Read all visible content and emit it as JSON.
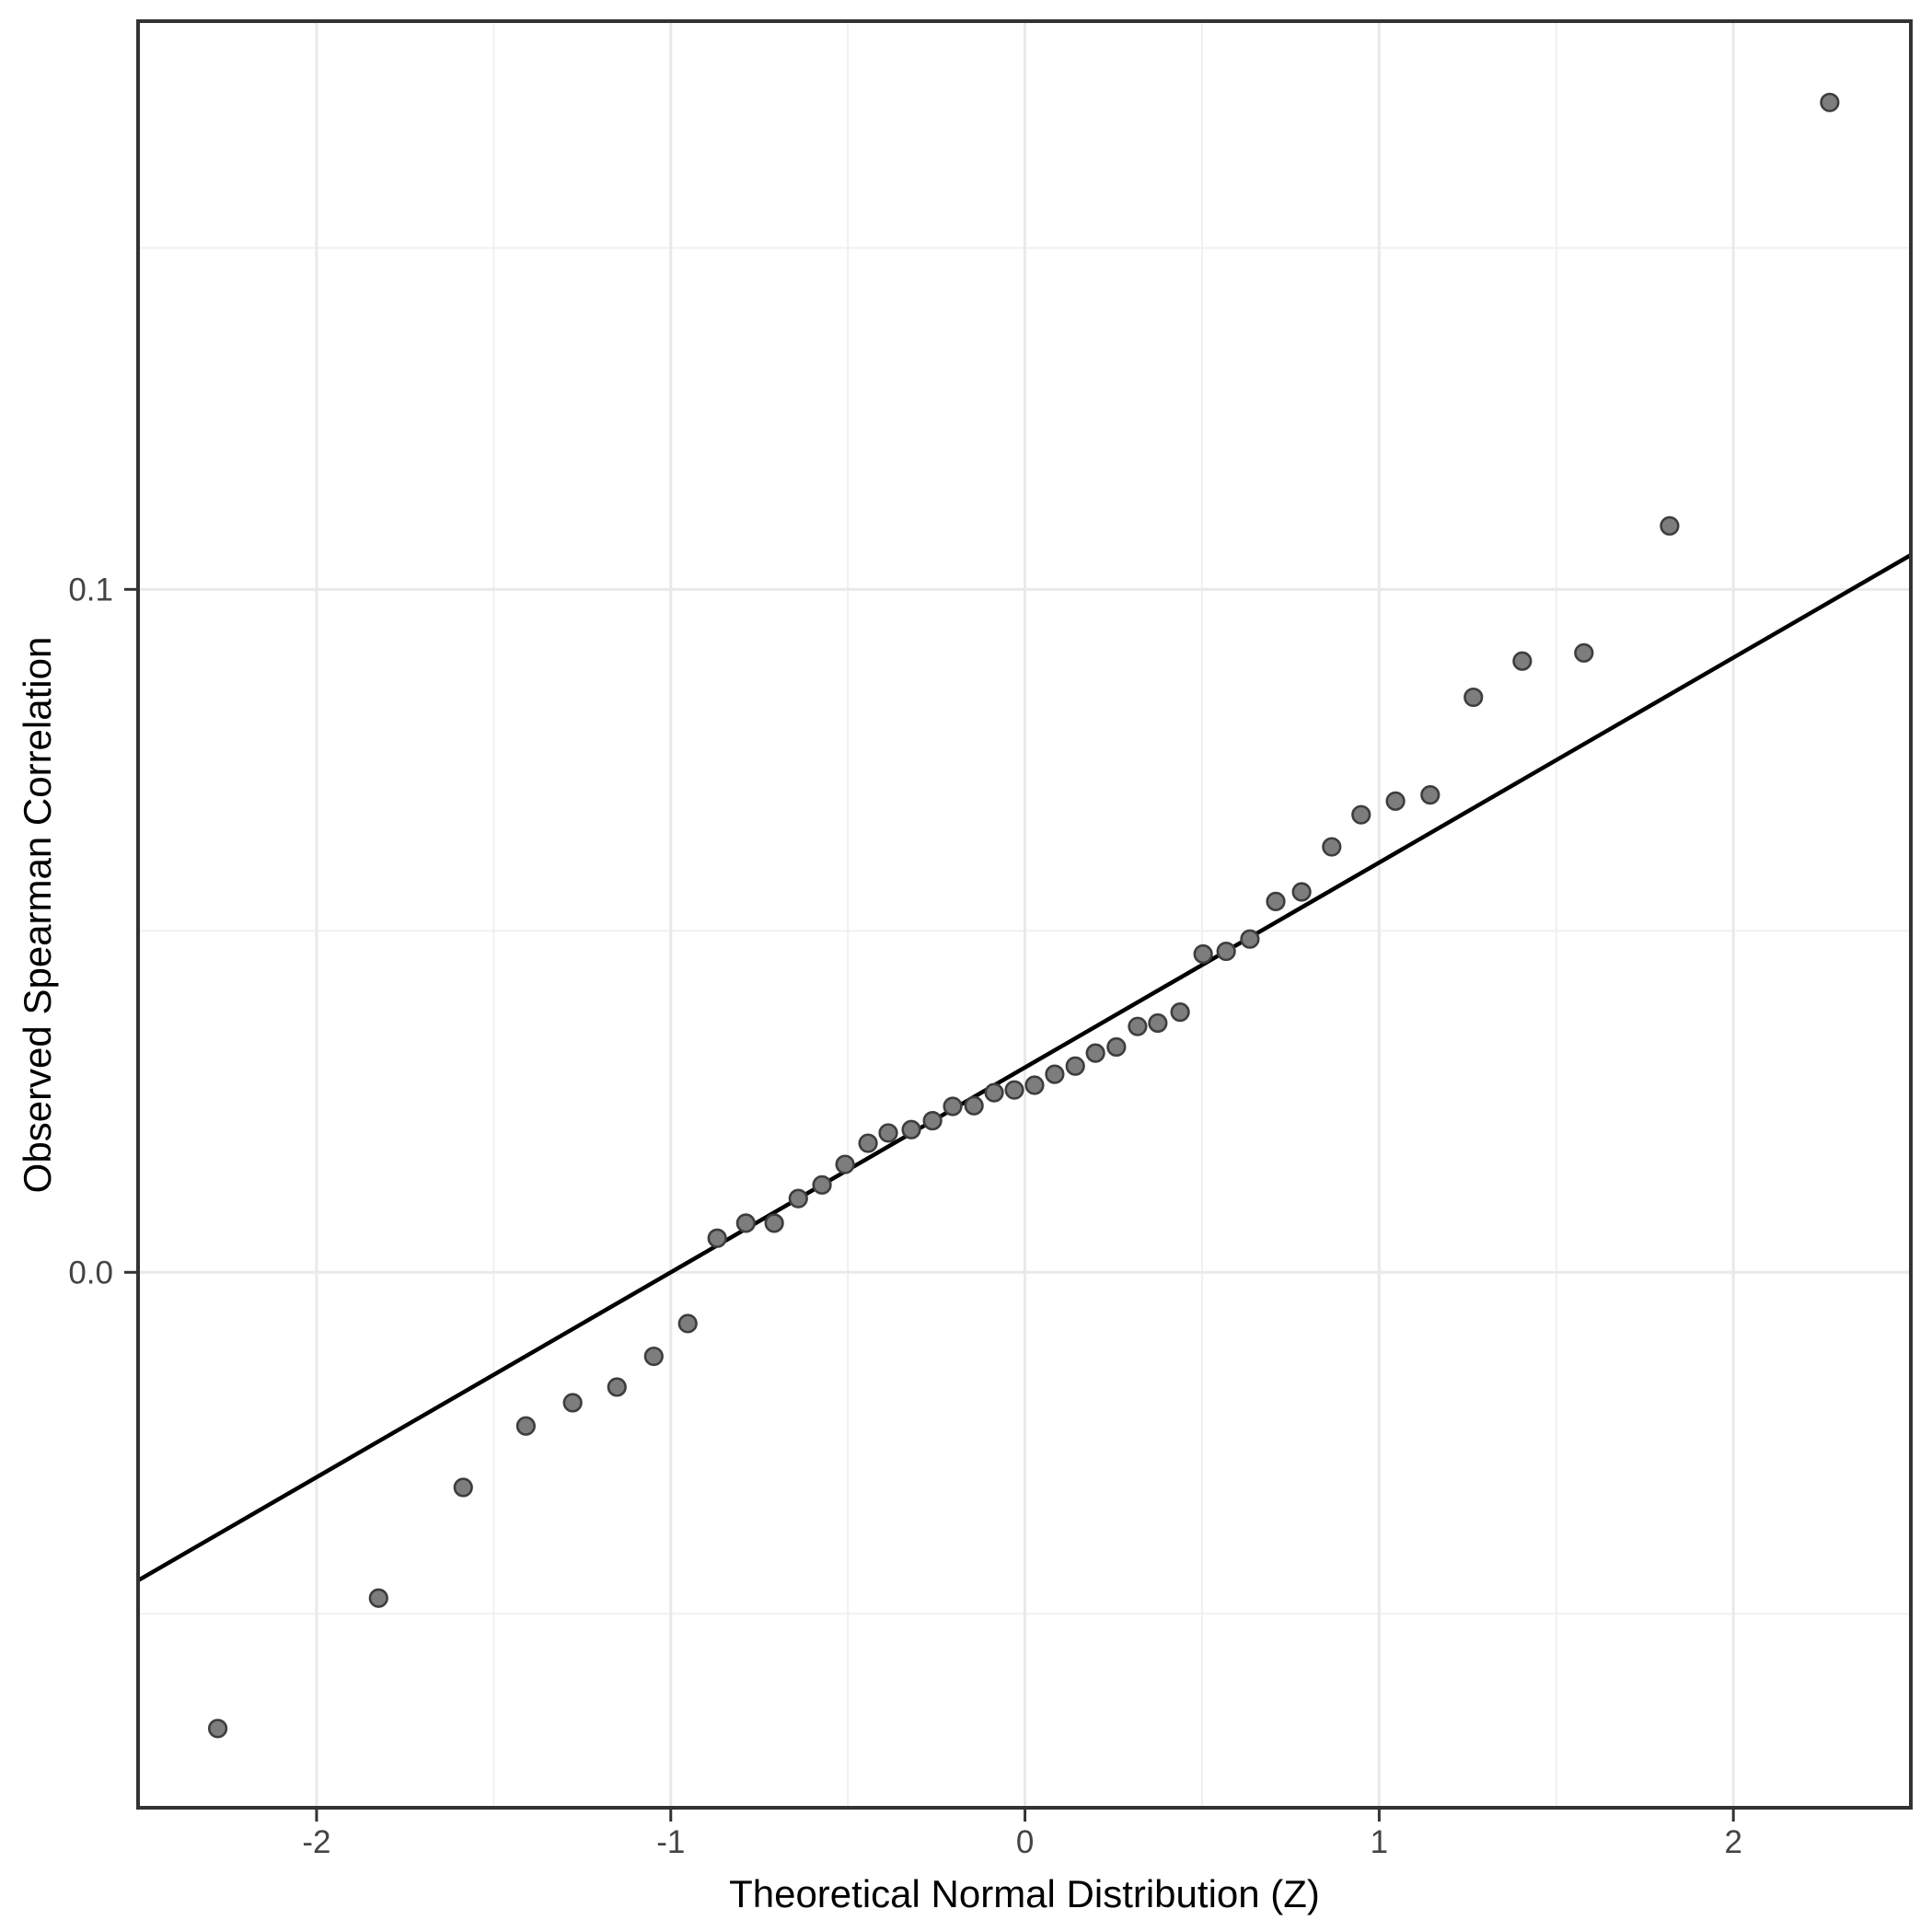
{
  "figure": {
    "background": "#ffffff"
  },
  "colors": {
    "panel_border": "#333333",
    "grid_major": "#e9e9e9",
    "grid_minor": "#f0f0f0",
    "tick_mark": "#333333",
    "tick_label": "#444444",
    "axis_title": "#000000",
    "point_fill": "#7d7d7d",
    "point_stroke": "#3d3d3d",
    "reference_line": "#000000"
  },
  "chart_data": {
    "type": "scatter",
    "title": "",
    "xlabel": "Theoretical Normal Distribution (Z)",
    "ylabel": "Observed Spearman Correlation",
    "xlim": [
      -2.504,
      2.501
    ],
    "ylim": [
      -0.0784,
      0.1832
    ],
    "grid": "major-and-minor",
    "legend": "none",
    "x_tick_values": [
      -2,
      -1,
      0,
      1,
      2
    ],
    "x_tick_labels": [
      "-2",
      "-1",
      "0",
      "1",
      "2"
    ],
    "y_tick_values": [
      0.0,
      0.1
    ],
    "y_tick_labels": [
      "0.0",
      "0.1"
    ],
    "x_minor_gridlines": [
      -1.5,
      -0.5,
      0.5,
      1.5
    ],
    "y_minor_gridlines": [
      -0.05,
      0.05,
      0.15
    ],
    "reference_line": {
      "x": [
        -2.504,
        2.501
      ],
      "y": [
        -0.04512,
        0.10503
      ]
    },
    "points": [
      [
        -2.279,
        -0.0668
      ],
      [
        -1.825,
        -0.0477
      ],
      [
        -1.586,
        -0.0315
      ],
      [
        -1.409,
        -0.0225
      ],
      [
        -1.277,
        -0.0191
      ],
      [
        -1.152,
        -0.0168
      ],
      [
        -1.048,
        -0.0123
      ],
      [
        -0.952,
        -0.0075
      ],
      [
        -0.869,
        0.005
      ],
      [
        -0.788,
        0.0072
      ],
      [
        -0.708,
        0.0072
      ],
      [
        -0.64,
        0.0108
      ],
      [
        -0.573,
        0.0128
      ],
      [
        -0.508,
        0.0158
      ],
      [
        -0.443,
        0.0189
      ],
      [
        -0.386,
        0.0204
      ],
      [
        -0.321,
        0.0209
      ],
      [
        -0.261,
        0.0222
      ],
      [
        -0.204,
        0.0243
      ],
      [
        -0.144,
        0.0244
      ],
      [
        -0.087,
        0.0263
      ],
      [
        -0.03,
        0.0267
      ],
      [
        0.027,
        0.0274
      ],
      [
        0.084,
        0.029
      ],
      [
        0.142,
        0.0302
      ],
      [
        0.199,
        0.0321
      ],
      [
        0.258,
        0.033
      ],
      [
        0.318,
        0.036
      ],
      [
        0.375,
        0.0365
      ],
      [
        0.438,
        0.0381
      ],
      [
        0.503,
        0.0466
      ],
      [
        0.568,
        0.047
      ],
      [
        0.635,
        0.0488
      ],
      [
        0.708,
        0.0543
      ],
      [
        0.781,
        0.0557
      ],
      [
        0.866,
        0.0623
      ],
      [
        0.949,
        0.067
      ],
      [
        1.046,
        0.069
      ],
      [
        1.144,
        0.0699
      ],
      [
        1.266,
        0.0842
      ],
      [
        1.404,
        0.0895
      ],
      [
        1.578,
        0.0907
      ],
      [
        1.82,
        0.1093
      ],
      [
        2.272,
        0.1713
      ]
    ]
  }
}
